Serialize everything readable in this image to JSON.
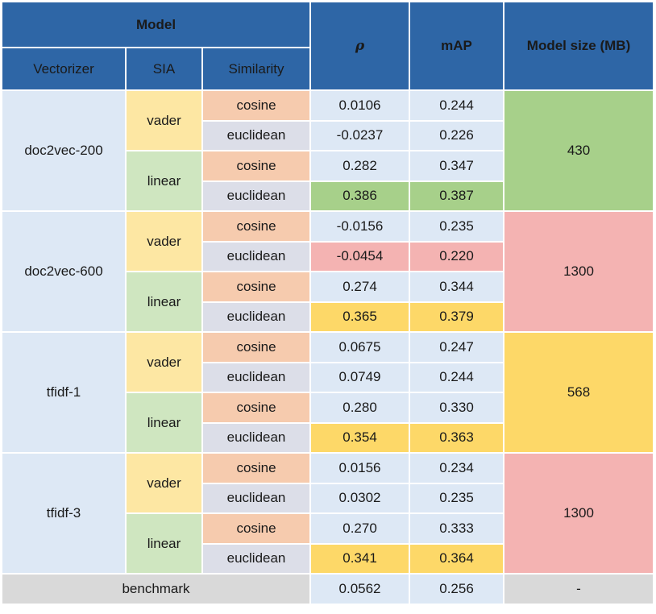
{
  "header": {
    "model": "Model",
    "rho": "ρ",
    "map": "mAP",
    "model_size": "Model size (MB)",
    "vectorizer": "Vectorizer",
    "sia": "SIA",
    "similarity": "Similarity"
  },
  "groups": [
    {
      "vectorizer": "doc2vec-200",
      "size": "430",
      "size_color": "#a7d08a",
      "rows": [
        {
          "sia": "vader",
          "similarity": "cosine",
          "rho": "0.0106",
          "map": "0.244"
        },
        {
          "similarity": "euclidean",
          "rho": "-0.0237",
          "map": "0.226"
        },
        {
          "sia": "linear",
          "similarity": "cosine",
          "rho": "0.282",
          "map": "0.347"
        },
        {
          "similarity": "euclidean",
          "rho": "0.386",
          "map": "0.387",
          "highlight": "#a7d08a"
        }
      ]
    },
    {
      "vectorizer": "doc2vec-600",
      "size": "1300",
      "size_color": "#f4b3b2",
      "rows": [
        {
          "sia": "vader",
          "similarity": "cosine",
          "rho": "-0.0156",
          "map": "0.235"
        },
        {
          "similarity": "euclidean",
          "rho": "-0.0454",
          "map": "0.220",
          "highlight": "#f4b3b2"
        },
        {
          "sia": "linear",
          "similarity": "cosine",
          "rho": "0.274",
          "map": "0.344"
        },
        {
          "similarity": "euclidean",
          "rho": "0.365",
          "map": "0.379",
          "highlight": "#fdd868"
        }
      ]
    },
    {
      "vectorizer": "tfidf-1",
      "size": "568",
      "size_color": "#fdd868",
      "rows": [
        {
          "sia": "vader",
          "similarity": "cosine",
          "rho": "0.0675",
          "map": "0.247"
        },
        {
          "similarity": "euclidean",
          "rho": "0.0749",
          "map": "0.244"
        },
        {
          "sia": "linear",
          "similarity": "cosine",
          "rho": "0.280",
          "map": "0.330"
        },
        {
          "similarity": "euclidean",
          "rho": "0.354",
          "map": "0.363",
          "highlight": "#fdd868"
        }
      ]
    },
    {
      "vectorizer": "tfidf-3",
      "size": "1300",
      "size_color": "#f4b3b2",
      "rows": [
        {
          "sia": "vader",
          "similarity": "cosine",
          "rho": "0.0156",
          "map": "0.234"
        },
        {
          "similarity": "euclidean",
          "rho": "0.0302",
          "map": "0.235"
        },
        {
          "sia": "linear",
          "similarity": "cosine",
          "rho": "0.270",
          "map": "0.333"
        },
        {
          "similarity": "euclidean",
          "rho": "0.341",
          "map": "0.364",
          "highlight": "#fdd868"
        }
      ]
    }
  ],
  "benchmark": {
    "label": "benchmark",
    "rho": "0.0562",
    "map": "0.256",
    "size": "-"
  }
}
